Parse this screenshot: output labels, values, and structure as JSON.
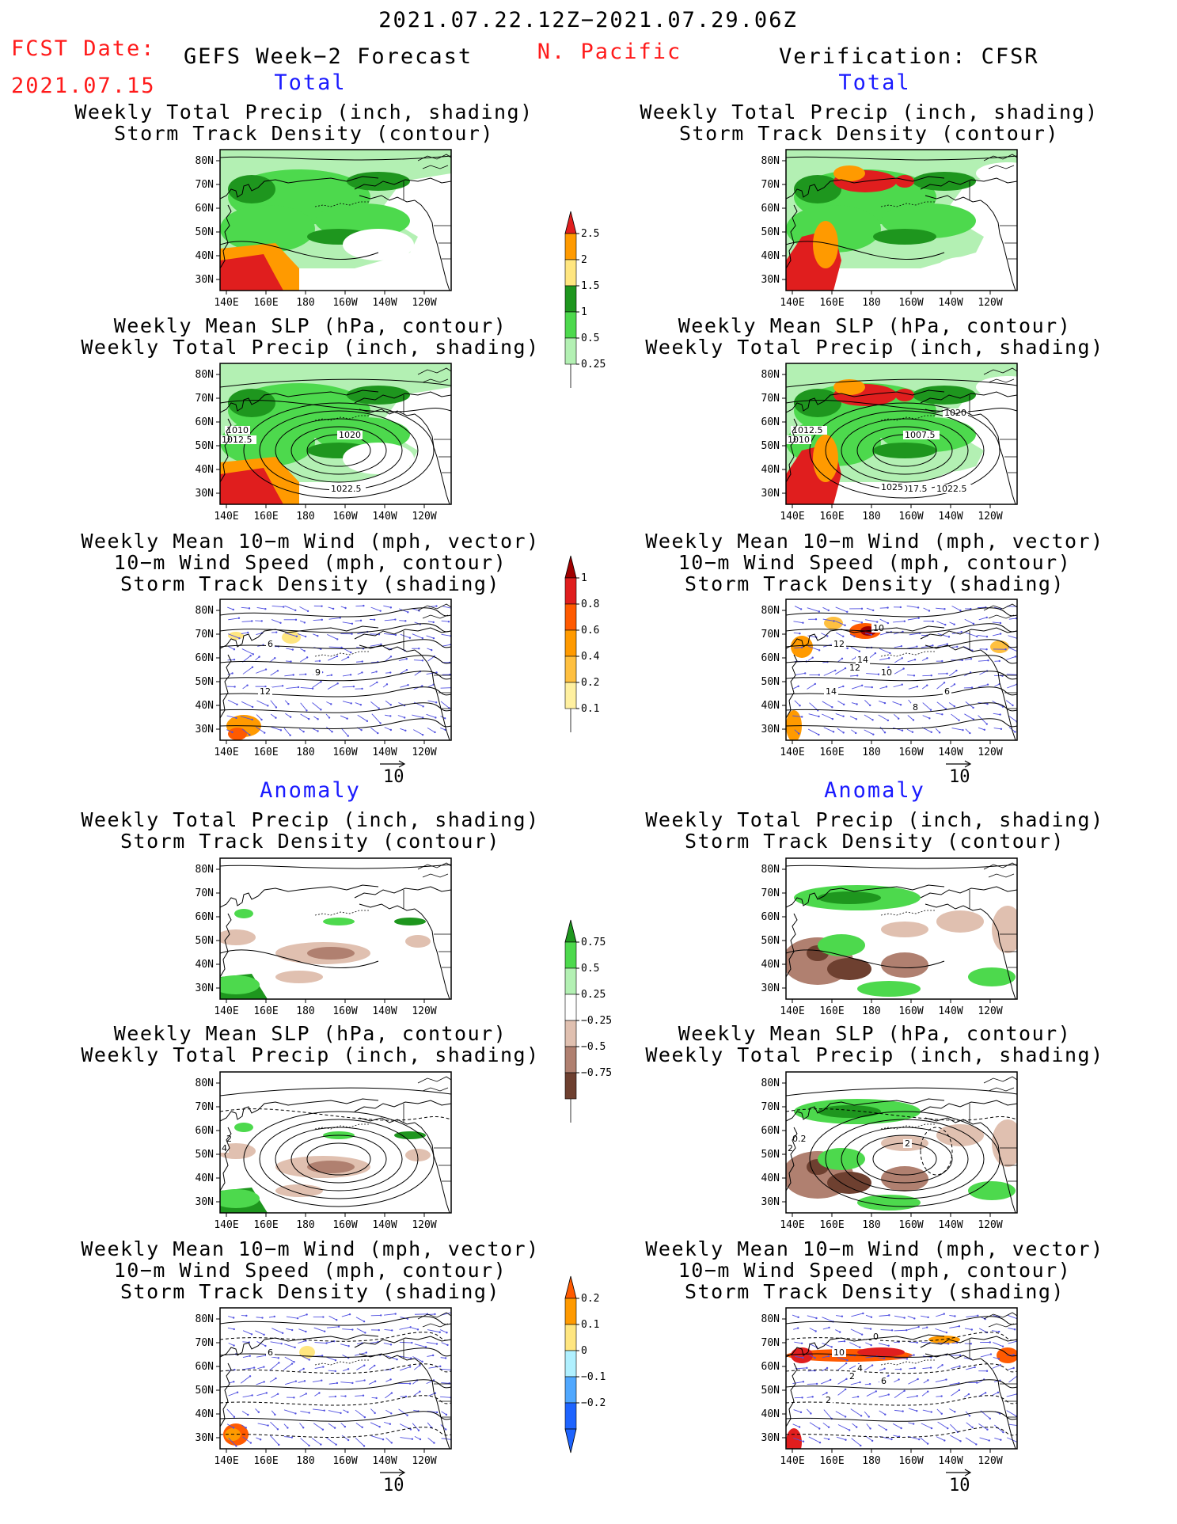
{
  "header": {
    "period": "2021.07.22.12Z−2021.07.29.06Z",
    "fcst_label": "FCST Date:",
    "fcst_date": "2021.07.15",
    "forecast_title": "GEFS Week−2 Forecast",
    "region": "N. Pacific",
    "verification": "Verification: CFSR"
  },
  "sections": {
    "total": "Total",
    "anomaly": "Anomaly"
  },
  "titles": {
    "p1": [
      "Weekly Total Precip (inch, shading)",
      "Storm Track Density (contour)"
    ],
    "p2": [
      "Weekly Mean SLP (hPa, contour)",
      "Weekly Total Precip (inch, shading)"
    ],
    "p3": [
      "Weekly Mean 10−m Wind (mph, vector)",
      "10−m Wind Speed (mph, contour)",
      "Storm Track Density (shading)"
    ]
  },
  "axes": {
    "lat_labels": [
      "80N",
      "70N",
      "60N",
      "50N",
      "40N",
      "30N"
    ],
    "lon_labels": [
      "140E",
      "160E",
      "180",
      "160W",
      "140W",
      "120W"
    ]
  },
  "vector_ref": "10",
  "colorbars": {
    "precip_total": {
      "labels": [
        "2.5",
        "2",
        "1.5",
        "1",
        "0.5",
        "0.25"
      ],
      "colors": [
        "#e01e1e",
        "#ff9a00",
        "#ffe680",
        "#1e961e",
        "#4dd94d",
        "#b3f0b3"
      ]
    },
    "track_total": {
      "labels": [
        "1",
        "0.8",
        "0.6",
        "0.4",
        "0.2",
        "0.1"
      ],
      "colors": [
        "#a00000",
        "#e01e1e",
        "#ff5a00",
        "#ff9a00",
        "#ffc040",
        "#fff0a0"
      ]
    },
    "precip_anom": {
      "labels": [
        "0.75",
        "0.5",
        "0.25",
        "−0.25",
        "−0.5",
        "−0.75"
      ],
      "colors": [
        "#1e961e",
        "#4dd94d",
        "#b3f0b3",
        "#ffffff",
        "#e0c0b0",
        "#b08070",
        "#6e4030"
      ]
    },
    "track_anom": {
      "labels": [
        "0.2",
        "0.1",
        "0",
        "−0.1",
        "−0.2"
      ],
      "colors": [
        "#ff5a00",
        "#ff9a00",
        "#ffe680",
        "#b0f0ff",
        "#50a8ff",
        "#1e64ff"
      ]
    }
  },
  "panel_contour_labels": {
    "ft_slp": [
      "1010",
      "1012.5",
      "1020",
      "1022.5"
    ],
    "vt_slp": [
      "1012.5",
      "1010",
      "1007.5",
      "1017.5",
      "1020",
      "1025",
      "1022.5"
    ],
    "ft_wind": [
      "6",
      "9",
      "12"
    ],
    "vt_wind": [
      "12",
      "10",
      "14",
      "10",
      "14",
      "12",
      "6",
      "8"
    ],
    "fa_slp": [
      "2",
      "4"
    ],
    "va_slp": [
      "0.2",
      "2",
      "2"
    ],
    "fa_wind": [
      "6"
    ],
    "va_wind": [
      "10",
      "6",
      "2",
      "0",
      "4",
      "2"
    ]
  }
}
